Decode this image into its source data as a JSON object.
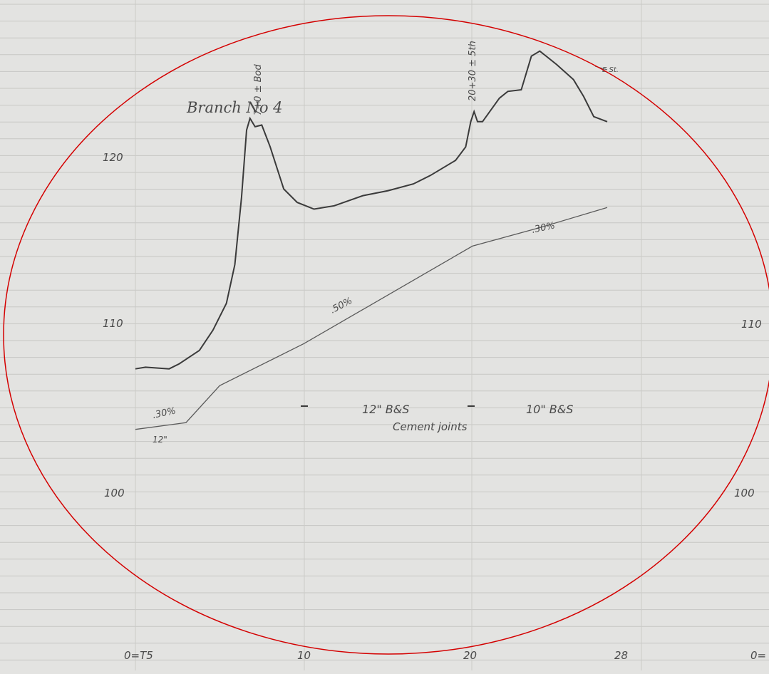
{
  "chart_data": {
    "type": "line",
    "title": "Branch No 4",
    "x_ticks": [
      "0=T5",
      "10",
      "20",
      "28"
    ],
    "x_ticks_right": [
      "0="
    ],
    "y_ticks": [
      "100",
      "110",
      "120"
    ],
    "y_ticks_right": [
      "100",
      "110"
    ],
    "xlim": [
      0,
      28
    ],
    "ylim": [
      96,
      127
    ],
    "series": [
      {
        "name": "",
        "values": [
          [
            0,
            107.3
          ],
          [
            0.6,
            107.4
          ],
          [
            2,
            107.3
          ],
          [
            2.6,
            107.6
          ],
          [
            3.8,
            108.4
          ],
          [
            4.6,
            109.6
          ],
          [
            5.4,
            111.2
          ],
          [
            5.9,
            113.5
          ],
          [
            6.3,
            117.5
          ],
          [
            6.6,
            121.5
          ],
          [
            6.8,
            122.2
          ],
          [
            7.1,
            121.7
          ],
          [
            7.5,
            121.8
          ],
          [
            8,
            120.5
          ],
          [
            8.8,
            118
          ],
          [
            9.6,
            117.2
          ],
          [
            10.6,
            116.8
          ],
          [
            11.8,
            117
          ],
          [
            13.5,
            117.6
          ],
          [
            15,
            117.9
          ],
          [
            16.5,
            118.3
          ],
          [
            17.5,
            118.8
          ],
          [
            19,
            119.7
          ],
          [
            19.6,
            120.5
          ],
          [
            19.9,
            122
          ],
          [
            20.1,
            122.6
          ],
          [
            20.3,
            122
          ],
          [
            20.6,
            122
          ],
          [
            21.6,
            123.4
          ],
          [
            22.1,
            123.8
          ],
          [
            22.9,
            123.9
          ],
          [
            23.5,
            125.9
          ],
          [
            24,
            126.2
          ],
          [
            25,
            125.4
          ],
          [
            26,
            124.5
          ],
          [
            26.6,
            123.5
          ],
          [
            27.2,
            122.3
          ],
          [
            28,
            122
          ]
        ]
      },
      {
        "name": "",
        "values": [
          [
            0,
            103.7
          ],
          [
            3,
            104.1
          ],
          [
            5,
            106.3
          ],
          [
            10,
            108.8
          ],
          [
            15,
            111.7
          ],
          [
            20,
            114.6
          ],
          [
            24,
            115.7
          ],
          [
            28,
            116.9
          ]
        ]
      }
    ],
    "annotations": {
      "peak_left": "7+0 ± Bod",
      "peak_right": "20+30 ± 5th",
      "street": "E St.",
      "grade_left": ".30%",
      "grade_mid": ".50%",
      "grade_right": ".30%",
      "pipe_size_left": "12\"",
      "pipe_mid": "12\" B&S",
      "pipe_right": "10\" B&S",
      "joints": "Cement joints"
    },
    "grid": true,
    "border": {
      "color": "#d40000",
      "shape": "ellipse"
    }
  }
}
